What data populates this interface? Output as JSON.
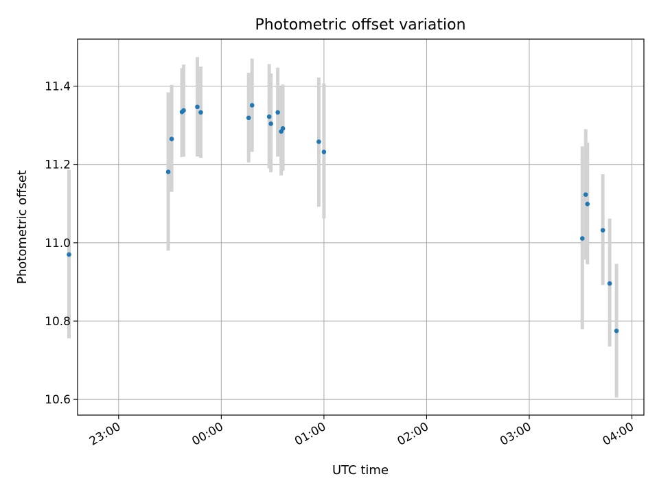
{
  "chart_data": {
    "type": "scatter",
    "title": "Photometric offset variation",
    "xlabel": "UTC time",
    "ylabel": "Photometric offset",
    "x_format": "HH:MM",
    "xlim": [
      "22:36",
      "04:07"
    ],
    "ylim": [
      10.56,
      11.52
    ],
    "x_ticks": [
      "23:00",
      "00:00",
      "01:00",
      "02:00",
      "03:00",
      "04:00"
    ],
    "y_ticks": [
      10.6,
      10.8,
      11.0,
      11.2,
      11.4
    ],
    "y_tick_labels": [
      "10.6",
      "10.8",
      "11.0",
      "11.2",
      "11.4"
    ],
    "grid": true,
    "colors": {
      "points": "#1f77b4",
      "errorbars": "#d3d3d3",
      "grid": "#b0b0b0"
    },
    "points": [
      {
        "t": "22:31",
        "y": 10.97,
        "lo": 10.756,
        "hi": 11.186
      },
      {
        "t": "23:29",
        "y": 11.181,
        "lo": 10.98,
        "hi": 11.384
      },
      {
        "t": "23:31",
        "y": 11.265,
        "lo": 11.13,
        "hi": 11.403
      },
      {
        "t": "23:37",
        "y": 11.334,
        "lo": 11.219,
        "hi": 11.446
      },
      {
        "t": "23:38",
        "y": 11.338,
        "lo": 11.22,
        "hi": 11.455
      },
      {
        "t": "23:46",
        "y": 11.347,
        "lo": 11.22,
        "hi": 11.474
      },
      {
        "t": "23:48",
        "y": 11.333,
        "lo": 11.217,
        "hi": 11.45
      },
      {
        "t": "00:16",
        "y": 11.319,
        "lo": 11.205,
        "hi": 11.434
      },
      {
        "t": "00:18",
        "y": 11.351,
        "lo": 11.232,
        "hi": 11.47
      },
      {
        "t": "00:28",
        "y": 11.322,
        "lo": 11.19,
        "hi": 11.456
      },
      {
        "t": "00:29",
        "y": 11.304,
        "lo": 11.18,
        "hi": 11.432
      },
      {
        "t": "00:33",
        "y": 11.333,
        "lo": 11.22,
        "hi": 11.447
      },
      {
        "t": "00:35",
        "y": 11.284,
        "lo": 11.172,
        "hi": 11.399
      },
      {
        "t": "00:36",
        "y": 11.292,
        "lo": 11.184,
        "hi": 11.404
      },
      {
        "t": "00:57",
        "y": 11.258,
        "lo": 11.092,
        "hi": 11.422
      },
      {
        "t": "01:00",
        "y": 11.232,
        "lo": 11.062,
        "hi": 11.407
      },
      {
        "t": "03:31",
        "y": 11.011,
        "lo": 10.779,
        "hi": 11.246
      },
      {
        "t": "03:33",
        "y": 11.123,
        "lo": 10.957,
        "hi": 11.29
      },
      {
        "t": "03:34",
        "y": 11.099,
        "lo": 10.945,
        "hi": 11.256
      },
      {
        "t": "03:43",
        "y": 11.032,
        "lo": 10.892,
        "hi": 11.175
      },
      {
        "t": "03:47",
        "y": 10.896,
        "lo": 10.735,
        "hi": 11.062
      },
      {
        "t": "03:51",
        "y": 10.775,
        "lo": 10.605,
        "hi": 10.946
      }
    ]
  }
}
